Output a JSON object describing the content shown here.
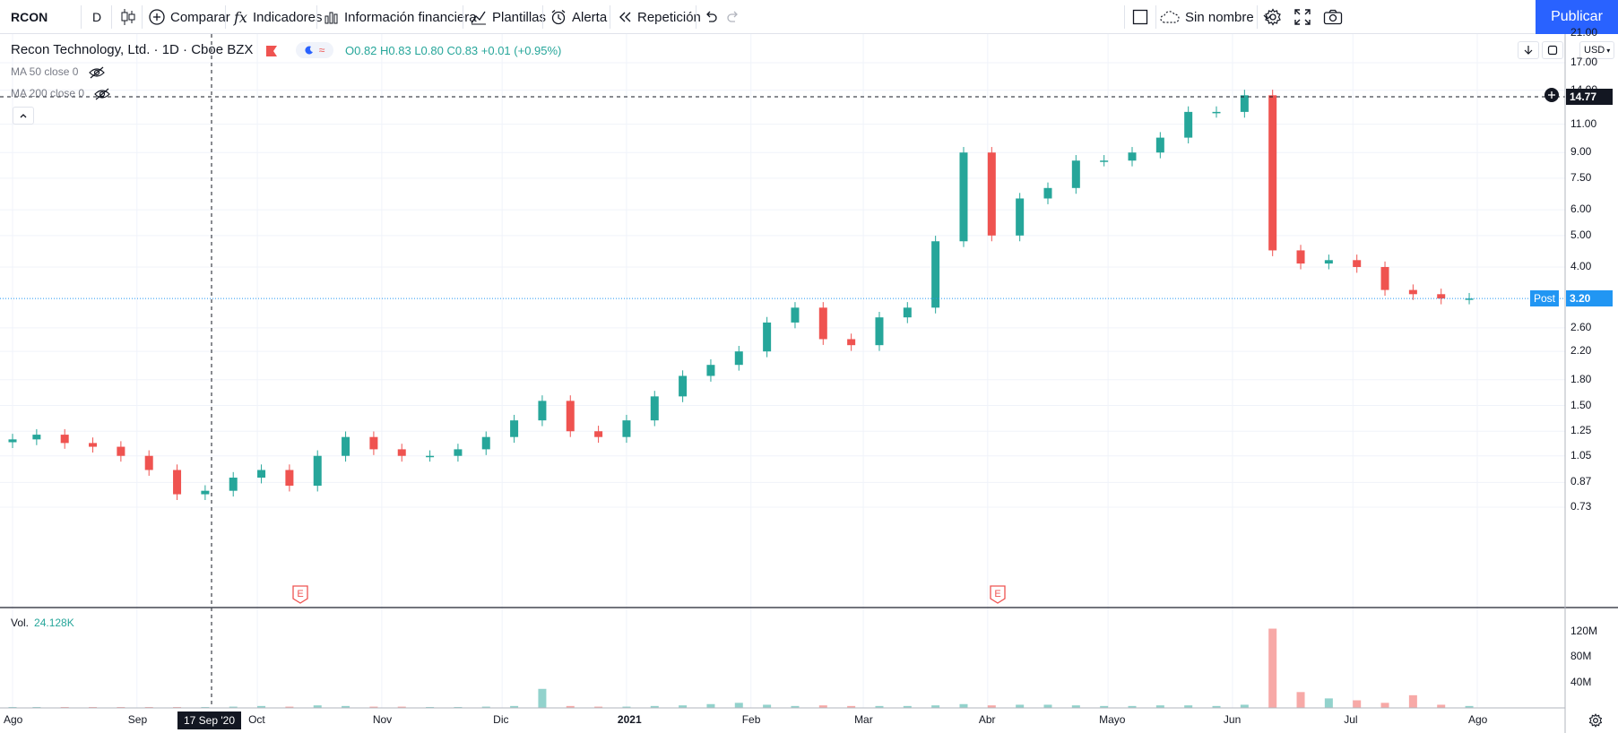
{
  "toolbar": {
    "symbol": "RCON",
    "interval": "D",
    "compare": "Comparar",
    "indicators": "Indicadores",
    "financials": "Información financiera",
    "templates": "Plantillas",
    "alert": "Alerta",
    "replay": "Repetición",
    "layout_name": "Sin nombre",
    "publish": "Publicar"
  },
  "legend": {
    "title": "Recon Technology, Ltd. · 1D · Cboe BZX",
    "ohlc": "O0.82 H0.83 L0.80 C0.83 +0.01 (+0.95%)",
    "ma50": "MA 50 close 0",
    "ma200": "MA 200 close 0"
  },
  "volume": {
    "label": "Vol.",
    "value": "24.128K"
  },
  "price_axis": {
    "currency": "USD",
    "ticks": [
      "21.00",
      "17.00",
      "14.00",
      "11.00",
      "9.00",
      "7.50",
      "6.00",
      "5.00",
      "4.00",
      "3.20",
      "2.60",
      "2.20",
      "1.80",
      "1.50",
      "1.25",
      "1.05",
      "0.87",
      "0.73"
    ],
    "volume_ticks": [
      "120M",
      "80M",
      "40M"
    ],
    "crosshair_price": "14.77",
    "last_price": "3.20",
    "last_label": "Post"
  },
  "time_axis": {
    "ticks": [
      "Ago",
      "Sep",
      "Oct",
      "Nov",
      "Dic",
      "2021",
      "Feb",
      "Mar",
      "Abr",
      "Mayo",
      "Jun",
      "Jul",
      "Ago"
    ],
    "crosshair_date": "17 Sep '20"
  },
  "events": {
    "earnings_label": "E"
  },
  "colors": {
    "up": "#26a69a",
    "down": "#ef5350",
    "accent": "#2962ff"
  },
  "chart_data": {
    "type": "candlestick",
    "scale": "log",
    "ylim": [
      0.65,
      21
    ],
    "x": [
      "2020-08-01",
      "2020-08-07",
      "2020-08-14",
      "2020-08-21",
      "2020-08-28",
      "2020-09-04",
      "2020-09-11",
      "2020-09-18",
      "2020-09-25",
      "2020-10-02",
      "2020-10-09",
      "2020-10-16",
      "2020-10-23",
      "2020-10-30",
      "2020-11-06",
      "2020-11-13",
      "2020-11-20",
      "2020-11-27",
      "2020-12-04",
      "2020-12-11",
      "2020-12-18",
      "2020-12-25",
      "2021-01-01",
      "2021-01-08",
      "2021-01-15",
      "2021-01-22",
      "2021-01-29",
      "2021-02-05",
      "2021-02-12",
      "2021-02-19",
      "2021-02-26",
      "2021-03-05",
      "2021-03-12",
      "2021-03-19",
      "2021-03-26",
      "2021-04-02",
      "2021-04-09",
      "2021-04-16",
      "2021-04-23",
      "2021-04-30",
      "2021-05-07",
      "2021-05-14",
      "2021-05-21",
      "2021-05-28",
      "2021-06-04",
      "2021-06-11",
      "2021-06-18",
      "2021-06-25",
      "2021-07-02",
      "2021-07-09",
      "2021-07-16",
      "2021-07-23",
      "2021-07-30"
    ],
    "close": [
      1.18,
      1.22,
      1.15,
      1.12,
      1.05,
      0.95,
      0.8,
      0.82,
      0.9,
      0.95,
      0.85,
      1.05,
      1.2,
      1.1,
      1.05,
      1.05,
      1.1,
      1.2,
      1.35,
      1.55,
      1.25,
      1.2,
      1.35,
      1.6,
      1.85,
      2.0,
      2.2,
      2.7,
      3.0,
      2.4,
      2.3,
      2.8,
      3.0,
      4.8,
      9.0,
      5.0,
      6.5,
      7.0,
      8.5,
      8.5,
      9.0,
      10.0,
      12.0,
      12.0,
      13.5,
      4.5,
      4.1,
      4.2,
      4.0,
      3.4,
      3.3,
      3.2,
      3.2
    ],
    "volume_m": [
      1,
      1,
      1,
      1,
      1,
      1,
      1,
      1,
      2,
      3,
      2,
      4,
      3,
      2,
      2,
      1,
      1,
      2,
      3,
      30,
      3,
      2,
      2,
      3,
      4,
      6,
      8,
      5,
      3,
      4,
      3,
      3,
      3,
      4,
      6,
      4,
      5,
      5,
      4,
      3,
      3,
      4,
      4,
      3,
      5,
      125,
      25,
      15,
      12,
      8,
      20,
      5,
      3
    ]
  }
}
